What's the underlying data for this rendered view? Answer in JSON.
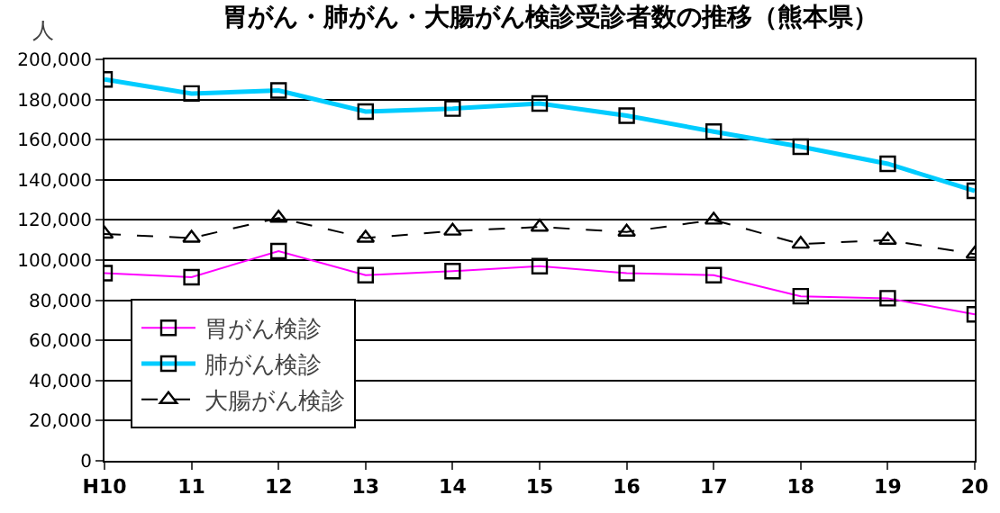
{
  "chart_data": {
    "type": "line",
    "title": "胃がん・肺がん・大腸がん検診受診者数の推移（熊本県）",
    "ylabel": "人",
    "categories": [
      "H10",
      "11",
      "12",
      "13",
      "14",
      "15",
      "16",
      "17",
      "18",
      "19",
      "20"
    ],
    "series": [
      {
        "name": "胃がん検診",
        "color": "#ff00ff",
        "marker": "square",
        "line_style": "solid",
        "values": [
          93500,
          91500,
          104500,
          92500,
          94500,
          97000,
          93500,
          92500,
          82000,
          81000,
          73000
        ]
      },
      {
        "name": "肺がん検診",
        "color": "#00ccff",
        "marker": "square",
        "line_style": "solid",
        "values": [
          190000,
          183000,
          184500,
          174000,
          175500,
          178000,
          172000,
          164000,
          156500,
          148000,
          134500
        ]
      },
      {
        "name": "大腸がん検診",
        "color": "#000000",
        "marker": "triangle",
        "line_style": "dashed",
        "values": [
          113000,
          111000,
          121000,
          111000,
          114500,
          116500,
          114000,
          120000,
          108000,
          110000,
          103000
        ]
      }
    ],
    "ylim": [
      0,
      200000
    ],
    "yticks": [
      {
        "value": 0,
        "label": "0"
      },
      {
        "value": 20000,
        "label": "20,000"
      },
      {
        "value": 40000,
        "label": "40,000"
      },
      {
        "value": 60000,
        "label": "60,000"
      },
      {
        "value": 80000,
        "label": "80,000"
      },
      {
        "value": 100000,
        "label": "100,000"
      },
      {
        "value": 120000,
        "label": "120,000"
      },
      {
        "value": 140000,
        "label": "140,000"
      },
      {
        "value": 160000,
        "label": "160,000"
      },
      {
        "value": 180000,
        "label": "180,000"
      },
      {
        "value": 200000,
        "label": "200,000"
      }
    ],
    "grid": "y",
    "legend": "bottom left"
  }
}
